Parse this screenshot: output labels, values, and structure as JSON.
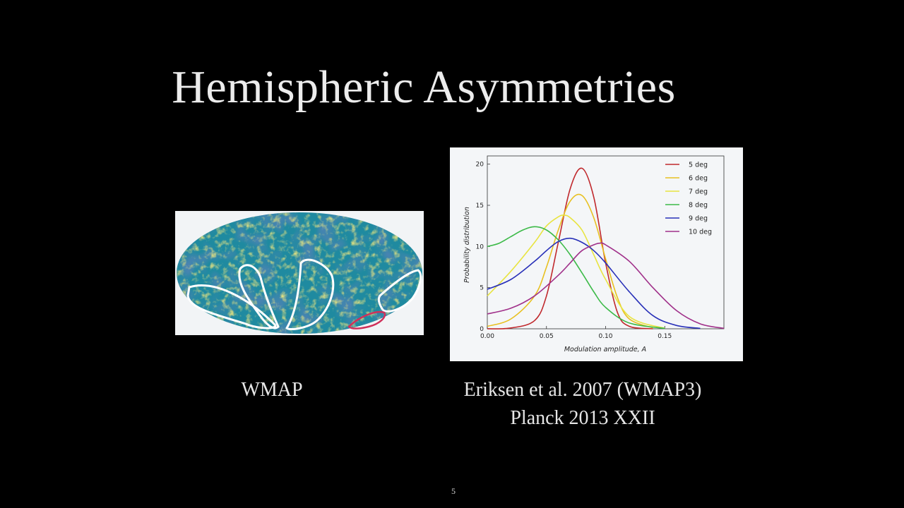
{
  "slide": {
    "title": "Hemispheric Asymmetries",
    "page_number": "5",
    "map_caption": "WMAP",
    "chart_caption_line1": "Eriksen et al. 2007 (WMAP3)",
    "chart_caption_line2": "Planck 2013 XXII"
  },
  "colors": {
    "background": "#000000",
    "map_ocean": "#1f8aa0",
    "map_cold": "#1a3f7a",
    "map_hot": "#c9c23a",
    "outline": "#ffffff",
    "outline_red": "#d0305a"
  },
  "chart_data": {
    "type": "line",
    "title": "",
    "xlabel": "Modulation amplitude, A",
    "ylabel": "Probability distribution",
    "xlim": [
      0.0,
      0.2
    ],
    "ylim": [
      0,
      21
    ],
    "xticks": [
      "0.00",
      "0.05",
      "0.10",
      "0.15"
    ],
    "xtick_values": [
      0.0,
      0.05,
      0.1,
      0.15
    ],
    "yticks": [
      "0",
      "5",
      "10",
      "15",
      "20"
    ],
    "ytick_values": [
      0,
      5,
      10,
      15,
      20
    ],
    "legend_position": "top-right",
    "grid": false,
    "series": [
      {
        "name": "5 deg",
        "color": "#c0282c",
        "x": [
          0.0,
          0.02,
          0.04,
          0.05,
          0.06,
          0.07,
          0.08,
          0.09,
          0.1,
          0.11,
          0.12,
          0.14
        ],
        "y": [
          0.0,
          0.1,
          1.0,
          4.0,
          10.5,
          17.0,
          19.5,
          16.0,
          8.0,
          2.0,
          0.3,
          0.0
        ]
      },
      {
        "name": "6 deg",
        "color": "#e8c020",
        "x": [
          0.0,
          0.02,
          0.04,
          0.05,
          0.06,
          0.07,
          0.08,
          0.09,
          0.1,
          0.11,
          0.12,
          0.14
        ],
        "y": [
          0.3,
          1.2,
          4.0,
          7.5,
          12.0,
          15.5,
          16.2,
          13.5,
          8.5,
          3.8,
          1.2,
          0.1
        ]
      },
      {
        "name": "7 deg",
        "color": "#e8e440",
        "x": [
          0.0,
          0.02,
          0.04,
          0.05,
          0.06,
          0.065,
          0.07,
          0.08,
          0.09,
          0.1,
          0.12,
          0.15
        ],
        "y": [
          4.0,
          7.0,
          10.5,
          12.5,
          13.6,
          13.8,
          13.5,
          12.0,
          9.0,
          6.0,
          1.5,
          0.05
        ]
      },
      {
        "name": "8 deg",
        "color": "#3cba48",
        "x": [
          0.0,
          0.01,
          0.02,
          0.03,
          0.04,
          0.05,
          0.06,
          0.07,
          0.08,
          0.09,
          0.1,
          0.12,
          0.15
        ],
        "y": [
          10.0,
          10.4,
          11.2,
          12.0,
          12.4,
          12.0,
          10.8,
          9.0,
          6.8,
          4.5,
          2.6,
          0.7,
          0.05
        ]
      },
      {
        "name": "9 deg",
        "color": "#2830b8",
        "x": [
          0.0,
          0.02,
          0.04,
          0.05,
          0.06,
          0.07,
          0.08,
          0.09,
          0.1,
          0.12,
          0.14,
          0.16,
          0.18
        ],
        "y": [
          4.8,
          6.0,
          8.2,
          9.5,
          10.6,
          11.0,
          10.5,
          9.5,
          8.0,
          4.5,
          1.6,
          0.4,
          0.05
        ]
      },
      {
        "name": "10 deg",
        "color": "#a0308a",
        "x": [
          0.0,
          0.02,
          0.04,
          0.06,
          0.07,
          0.08,
          0.09,
          0.095,
          0.1,
          0.12,
          0.14,
          0.16,
          0.18,
          0.2
        ],
        "y": [
          1.8,
          2.5,
          4.0,
          6.5,
          8.0,
          9.5,
          10.2,
          10.4,
          10.2,
          8.2,
          5.0,
          2.2,
          0.6,
          0.05
        ]
      }
    ]
  }
}
